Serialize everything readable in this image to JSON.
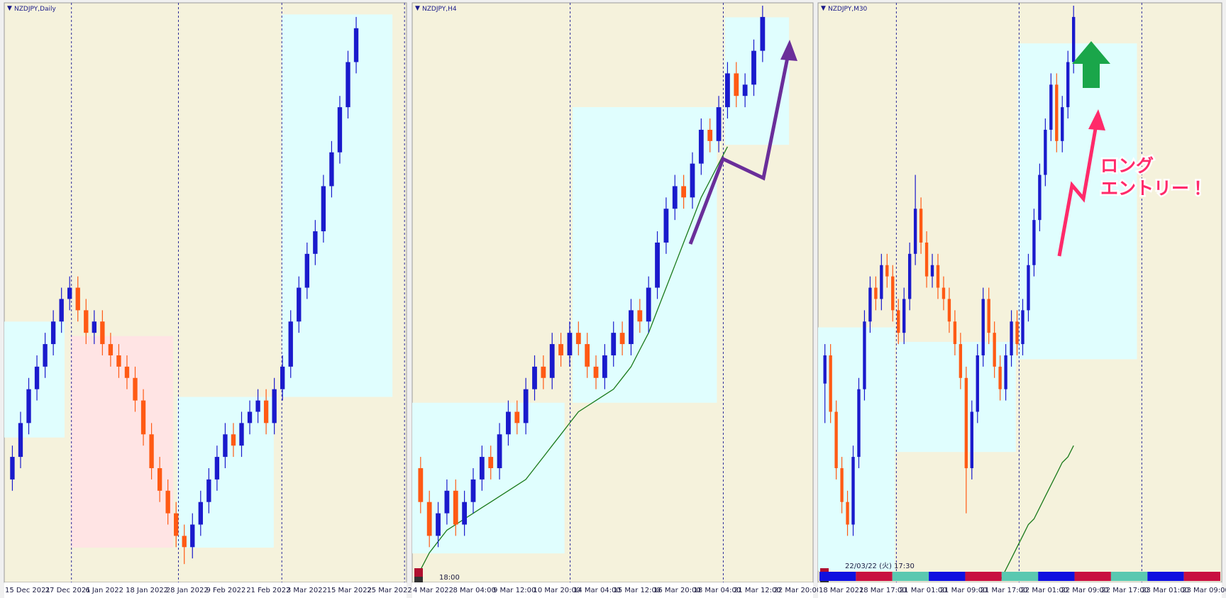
{
  "panels": [
    {
      "title": "NZDJPY,Daily",
      "x_labels": [
        "15 Dec 2021",
        "27 Dec 2021",
        "6 Jan 2022",
        "18 Jan 2022",
        "28 Jan 2022",
        "9 Feb 2022",
        "21 Feb 2022",
        "3 Mar 2022",
        "15 Mar 2022",
        "25 Mar 2022"
      ],
      "ylim": [
        0,
        102
      ],
      "ohlc": [
        [
          18,
          24,
          16,
          22
        ],
        [
          22,
          30,
          20,
          28
        ],
        [
          28,
          36,
          26,
          34
        ],
        [
          34,
          40,
          32,
          38
        ],
        [
          38,
          44,
          36,
          42
        ],
        [
          42,
          48,
          40,
          46
        ],
        [
          46,
          52,
          44,
          50
        ],
        [
          50,
          54,
          48,
          52
        ],
        [
          52,
          54,
          46,
          48
        ],
        [
          48,
          50,
          42,
          44
        ],
        [
          44,
          48,
          42,
          46
        ],
        [
          46,
          48,
          40,
          42
        ],
        [
          42,
          44,
          38,
          40
        ],
        [
          40,
          42,
          36,
          38
        ],
        [
          38,
          40,
          34,
          36
        ],
        [
          36,
          38,
          30,
          32
        ],
        [
          32,
          34,
          24,
          26
        ],
        [
          26,
          28,
          18,
          20
        ],
        [
          20,
          22,
          14,
          16
        ],
        [
          16,
          18,
          10,
          12
        ],
        [
          12,
          14,
          6,
          8
        ],
        [
          8,
          10,
          3,
          6
        ],
        [
          6,
          12,
          4,
          10
        ],
        [
          10,
          16,
          8,
          14
        ],
        [
          14,
          20,
          12,
          18
        ],
        [
          18,
          24,
          16,
          22
        ],
        [
          22,
          28,
          20,
          26
        ],
        [
          26,
          28,
          22,
          24
        ],
        [
          24,
          30,
          22,
          28
        ],
        [
          28,
          32,
          26,
          30
        ],
        [
          30,
          34,
          28,
          32
        ],
        [
          32,
          34,
          26,
          28
        ],
        [
          28,
          36,
          26,
          34
        ],
        [
          34,
          40,
          32,
          38
        ],
        [
          38,
          48,
          36,
          46
        ],
        [
          46,
          54,
          44,
          52
        ],
        [
          52,
          60,
          50,
          58
        ],
        [
          58,
          64,
          56,
          62
        ],
        [
          62,
          72,
          60,
          70
        ],
        [
          70,
          78,
          68,
          76
        ],
        [
          76,
          86,
          74,
          84
        ],
        [
          84,
          94,
          82,
          92
        ],
        [
          92,
          100,
          90,
          98
        ]
      ]
    },
    {
      "title": "NZDJPY,H4",
      "status_text": "18:00",
      "x_labels": [
        "4 Mar 2022",
        "8 Mar 04:00",
        "9 Mar 12:00",
        "10 Mar 20:00",
        "14 Mar 04:00",
        "15 Mar 12:00",
        "16 Mar 20:00",
        "18 Mar 04:00",
        "21 Mar 12:00",
        "22 Mar 20:00"
      ],
      "ylim": [
        0,
        102
      ],
      "ohlc": [
        [
          20,
          22,
          12,
          14
        ],
        [
          14,
          16,
          6,
          8
        ],
        [
          8,
          14,
          6,
          12
        ],
        [
          12,
          18,
          10,
          16
        ],
        [
          16,
          18,
          8,
          10
        ],
        [
          10,
          16,
          8,
          14
        ],
        [
          14,
          20,
          12,
          18
        ],
        [
          18,
          24,
          16,
          22
        ],
        [
          22,
          24,
          18,
          20
        ],
        [
          20,
          28,
          18,
          26
        ],
        [
          26,
          32,
          24,
          30
        ],
        [
          30,
          32,
          26,
          28
        ],
        [
          28,
          36,
          26,
          34
        ],
        [
          34,
          40,
          32,
          38
        ],
        [
          38,
          40,
          34,
          36
        ],
        [
          36,
          44,
          34,
          42
        ],
        [
          42,
          44,
          38,
          40
        ],
        [
          40,
          46,
          38,
          44
        ],
        [
          44,
          46,
          40,
          42
        ],
        [
          42,
          44,
          36,
          38
        ],
        [
          38,
          40,
          34,
          36
        ],
        [
          36,
          42,
          34,
          40
        ],
        [
          40,
          46,
          38,
          44
        ],
        [
          44,
          46,
          40,
          42
        ],
        [
          42,
          50,
          40,
          48
        ],
        [
          48,
          50,
          44,
          46
        ],
        [
          46,
          54,
          44,
          52
        ],
        [
          52,
          62,
          50,
          60
        ],
        [
          60,
          68,
          58,
          66
        ],
        [
          66,
          72,
          64,
          70
        ],
        [
          70,
          72,
          66,
          68
        ],
        [
          68,
          76,
          66,
          74
        ],
        [
          74,
          82,
          72,
          80
        ],
        [
          80,
          82,
          76,
          78
        ],
        [
          78,
          86,
          76,
          84
        ],
        [
          84,
          92,
          82,
          90
        ],
        [
          90,
          92,
          84,
          86
        ],
        [
          86,
          90,
          84,
          88
        ],
        [
          88,
          96,
          86,
          94
        ],
        [
          94,
          102,
          92,
          100
        ]
      ],
      "ma": [
        2,
        5,
        7,
        9,
        10,
        11,
        12,
        13,
        14,
        15,
        16,
        17,
        18,
        20,
        22,
        24,
        26,
        28,
        30,
        31,
        32,
        33,
        34,
        36,
        38,
        41,
        44,
        48,
        52,
        56,
        60,
        64,
        68,
        71,
        74,
        77,
        null,
        null,
        null,
        null
      ]
    },
    {
      "title": "NZDJPY,M30",
      "status_text": "22/03/22 (火) 17:30",
      "x_labels": [
        "18 Mar 2022",
        "18 Mar 17:00",
        "21 Mar 01:00",
        "21 Mar 09:00",
        "21 Mar 17:00",
        "22 Mar 01:00",
        "22 Mar 09:00",
        "22 Mar 17:00",
        "23 Mar 01:00",
        "23 Mar 09:00"
      ],
      "ylim": [
        0,
        102
      ],
      "ohlc": [
        [
          35,
          42,
          28,
          40
        ],
        [
          40,
          42,
          28,
          30
        ],
        [
          30,
          32,
          18,
          20
        ],
        [
          20,
          22,
          12,
          14
        ],
        [
          14,
          16,
          8,
          10
        ],
        [
          10,
          24,
          8,
          22
        ],
        [
          22,
          36,
          20,
          34
        ],
        [
          34,
          48,
          32,
          46
        ],
        [
          46,
          54,
          44,
          52
        ],
        [
          52,
          54,
          48,
          50
        ],
        [
          50,
          58,
          48,
          56
        ],
        [
          56,
          58,
          52,
          54
        ],
        [
          54,
          56,
          46,
          48
        ],
        [
          48,
          50,
          42,
          44
        ],
        [
          44,
          52,
          42,
          50
        ],
        [
          50,
          60,
          48,
          58
        ],
        [
          58,
          72,
          56,
          66
        ],
        [
          66,
          68,
          58,
          60
        ],
        [
          60,
          62,
          52,
          54
        ],
        [
          54,
          58,
          52,
          56
        ],
        [
          56,
          58,
          50,
          52
        ],
        [
          52,
          54,
          48,
          50
        ],
        [
          50,
          52,
          44,
          46
        ],
        [
          46,
          48,
          40,
          42
        ],
        [
          42,
          44,
          34,
          36
        ],
        [
          36,
          38,
          12,
          20
        ],
        [
          20,
          32,
          18,
          30
        ],
        [
          30,
          42,
          28,
          40
        ],
        [
          40,
          52,
          38,
          50
        ],
        [
          50,
          52,
          42,
          44
        ],
        [
          44,
          46,
          36,
          38
        ],
        [
          38,
          40,
          32,
          34
        ],
        [
          34,
          42,
          32,
          40
        ],
        [
          40,
          48,
          38,
          46
        ],
        [
          46,
          48,
          40,
          42
        ],
        [
          42,
          50,
          40,
          48
        ],
        [
          48,
          58,
          46,
          56
        ],
        [
          56,
          66,
          54,
          64
        ],
        [
          64,
          74,
          62,
          72
        ],
        [
          72,
          82,
          70,
          80
        ],
        [
          80,
          90,
          78,
          88
        ],
        [
          88,
          90,
          76,
          78
        ],
        [
          78,
          86,
          76,
          84
        ],
        [
          84,
          94,
          82,
          92
        ],
        [
          92,
          102,
          90,
          100
        ]
      ],
      "ma": [
        null,
        null,
        null,
        null,
        null,
        null,
        null,
        null,
        null,
        null,
        null,
        null,
        null,
        null,
        null,
        null,
        null,
        null,
        null,
        null,
        null,
        null,
        null,
        null,
        null,
        null,
        null,
        null,
        null,
        null,
        null,
        0,
        2,
        4,
        6,
        8,
        10,
        11,
        13,
        15,
        17,
        19,
        21,
        22,
        24
      ]
    }
  ],
  "up_color": "#1a1acc",
  "down_color": "#ff5a14",
  "ma_color": "#1a7a1a",
  "annotation": {
    "line1": "ロング",
    "line2": "エントリー！"
  }
}
